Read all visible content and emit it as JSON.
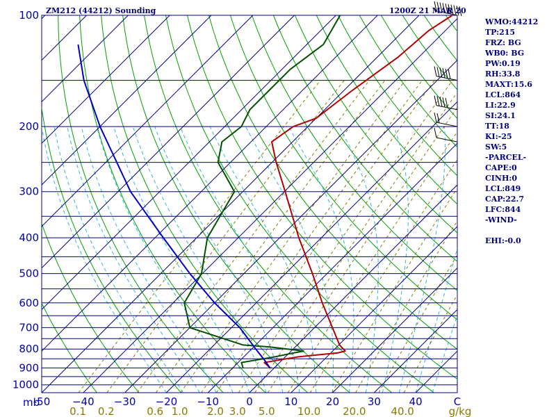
{
  "header": {
    "station": "ZM212 (44212) Sounding",
    "time": "1200Z 21 MAR 20"
  },
  "stats": [
    "WMO:44212",
    "TP:215",
    "FRZ: BG",
    "WB0: BG",
    "PW:0.19",
    "RH:33.8",
    "MAXT:15.6",
    "LCL:864",
    "LI:22.9",
    "SI:24.1",
    "TT:18",
    "KI:-25",
    "SW:5",
    "-PARCEL-",
    "CAPE:0",
    "CINH:0",
    "LCL:849",
    "CAP:22.7",
    "LFC:844",
    "-WIND-"
  ],
  "ehi": "EHI:-0.0",
  "colors": {
    "isobar": "#00007f",
    "dry_adiabat": "#00a000",
    "moist_adiabat": "#30b8d8",
    "mixing_ratio": "#8a7a00",
    "temperature": "#b00000",
    "dewpoint": "#005000",
    "parcel": "#0000c0",
    "wind": "#000000"
  },
  "chart_data": {
    "type": "line",
    "subtype": "skew-t log-p",
    "title": "ZM212 (44212) Sounding",
    "ylabel": "mb",
    "xlabel": "C",
    "xlabel_secondary": "g/kg",
    "p_range": [
      1050,
      100
    ],
    "t_range_at_1050mb": [
      -50,
      50
    ],
    "grid": true,
    "pressure_ticks": [
      100,
      200,
      300,
      400,
      500,
      600,
      700,
      800,
      900,
      1000
    ],
    "pressure_ticks_labels": [
      "100",
      "200",
      "300",
      "400",
      "500",
      "600",
      "700",
      "800",
      "900",
      "1000"
    ],
    "isobars_mb": [
      100,
      150,
      200,
      250,
      300,
      350,
      400,
      450,
      500,
      550,
      600,
      650,
      700,
      750,
      800,
      850,
      900,
      950,
      1000,
      1050
    ],
    "temp_ticks": [
      -50,
      -40,
      -30,
      -20,
      -10,
      0,
      10,
      20,
      30,
      40,
      50
    ],
    "temp_ticks_labels": [
      "-50",
      "−40",
      "−30",
      "−20",
      "−10",
      "0",
      "10",
      "20",
      "30",
      "40",
      "C"
    ],
    "mixing_ratio_ticks": [
      0.1,
      0.2,
      0.6,
      1.0,
      2.0,
      3.0,
      5.0,
      10.0,
      20.0,
      40.0
    ],
    "mixing_ratio_ticks_labels": [
      "0.1",
      "0.2",
      "0.6",
      "1.0",
      "2.0",
      "3.0",
      "5.0",
      "10.0",
      "20.0",
      "40.0",
      "g/kg"
    ],
    "series": [
      {
        "key": "temperature",
        "points": [
          [
            900,
            -1.0
          ],
          [
            870,
            -3.7
          ],
          [
            840,
            3.0
          ],
          [
            828,
            8.0
          ],
          [
            820,
            11.6
          ],
          [
            810,
            13.0
          ],
          [
            780,
            10.2
          ],
          [
            700,
            4.3
          ],
          [
            600,
            -4.1
          ],
          [
            500,
            -13.5
          ],
          [
            400,
            -25.4
          ],
          [
            300,
            -39.8
          ],
          [
            250,
            -49.0
          ],
          [
            220,
            -55.0
          ],
          [
            200,
            -53.5
          ],
          [
            190,
            -50.0
          ],
          [
            160,
            -48.0
          ],
          [
            130,
            -45.0
          ],
          [
            110,
            -44.0
          ],
          [
            100,
            -42.0
          ]
        ]
      },
      {
        "key": "dewpoint",
        "points": [
          [
            900,
            -7.5
          ],
          [
            870,
            -9.2
          ],
          [
            840,
            -2.6
          ],
          [
            820,
            1.0
          ],
          [
            810,
            3.0
          ],
          [
            790,
            -6.0
          ],
          [
            780,
            -13.0
          ],
          [
            700,
            -30.0
          ],
          [
            600,
            -37.3
          ],
          [
            500,
            -40.2
          ],
          [
            400,
            -47.4
          ],
          [
            300,
            -52.0
          ],
          [
            250,
            -63.0
          ],
          [
            220,
            -67.0
          ],
          [
            200,
            -66.0
          ],
          [
            180,
            -68.0
          ],
          [
            160,
            -68.0
          ],
          [
            140,
            -68.0
          ],
          [
            120,
            -66.0
          ],
          [
            100,
            -69.0
          ]
        ]
      },
      {
        "key": "parcel",
        "points": [
          [
            900,
            -1.0
          ],
          [
            860,
            -4.0
          ],
          [
            800,
            -9.0
          ],
          [
            700,
            -18.0
          ],
          [
            600,
            -30.0
          ],
          [
            500,
            -43.0
          ],
          [
            400,
            -58.0
          ],
          [
            300,
            -77.0
          ],
          [
            200,
            -100.0
          ],
          [
            150,
            -115.0
          ],
          [
            120,
            -125.0
          ]
        ]
      }
    ],
    "wind_barbs": [
      {
        "p": 100,
        "speed_kt": 100
      },
      {
        "p": 150,
        "speed_kt": 60
      },
      {
        "p": 180,
        "speed_kt": 50
      },
      {
        "p": 200,
        "speed_kt": 20
      },
      {
        "p": 220,
        "speed_kt": 10
      }
    ]
  }
}
